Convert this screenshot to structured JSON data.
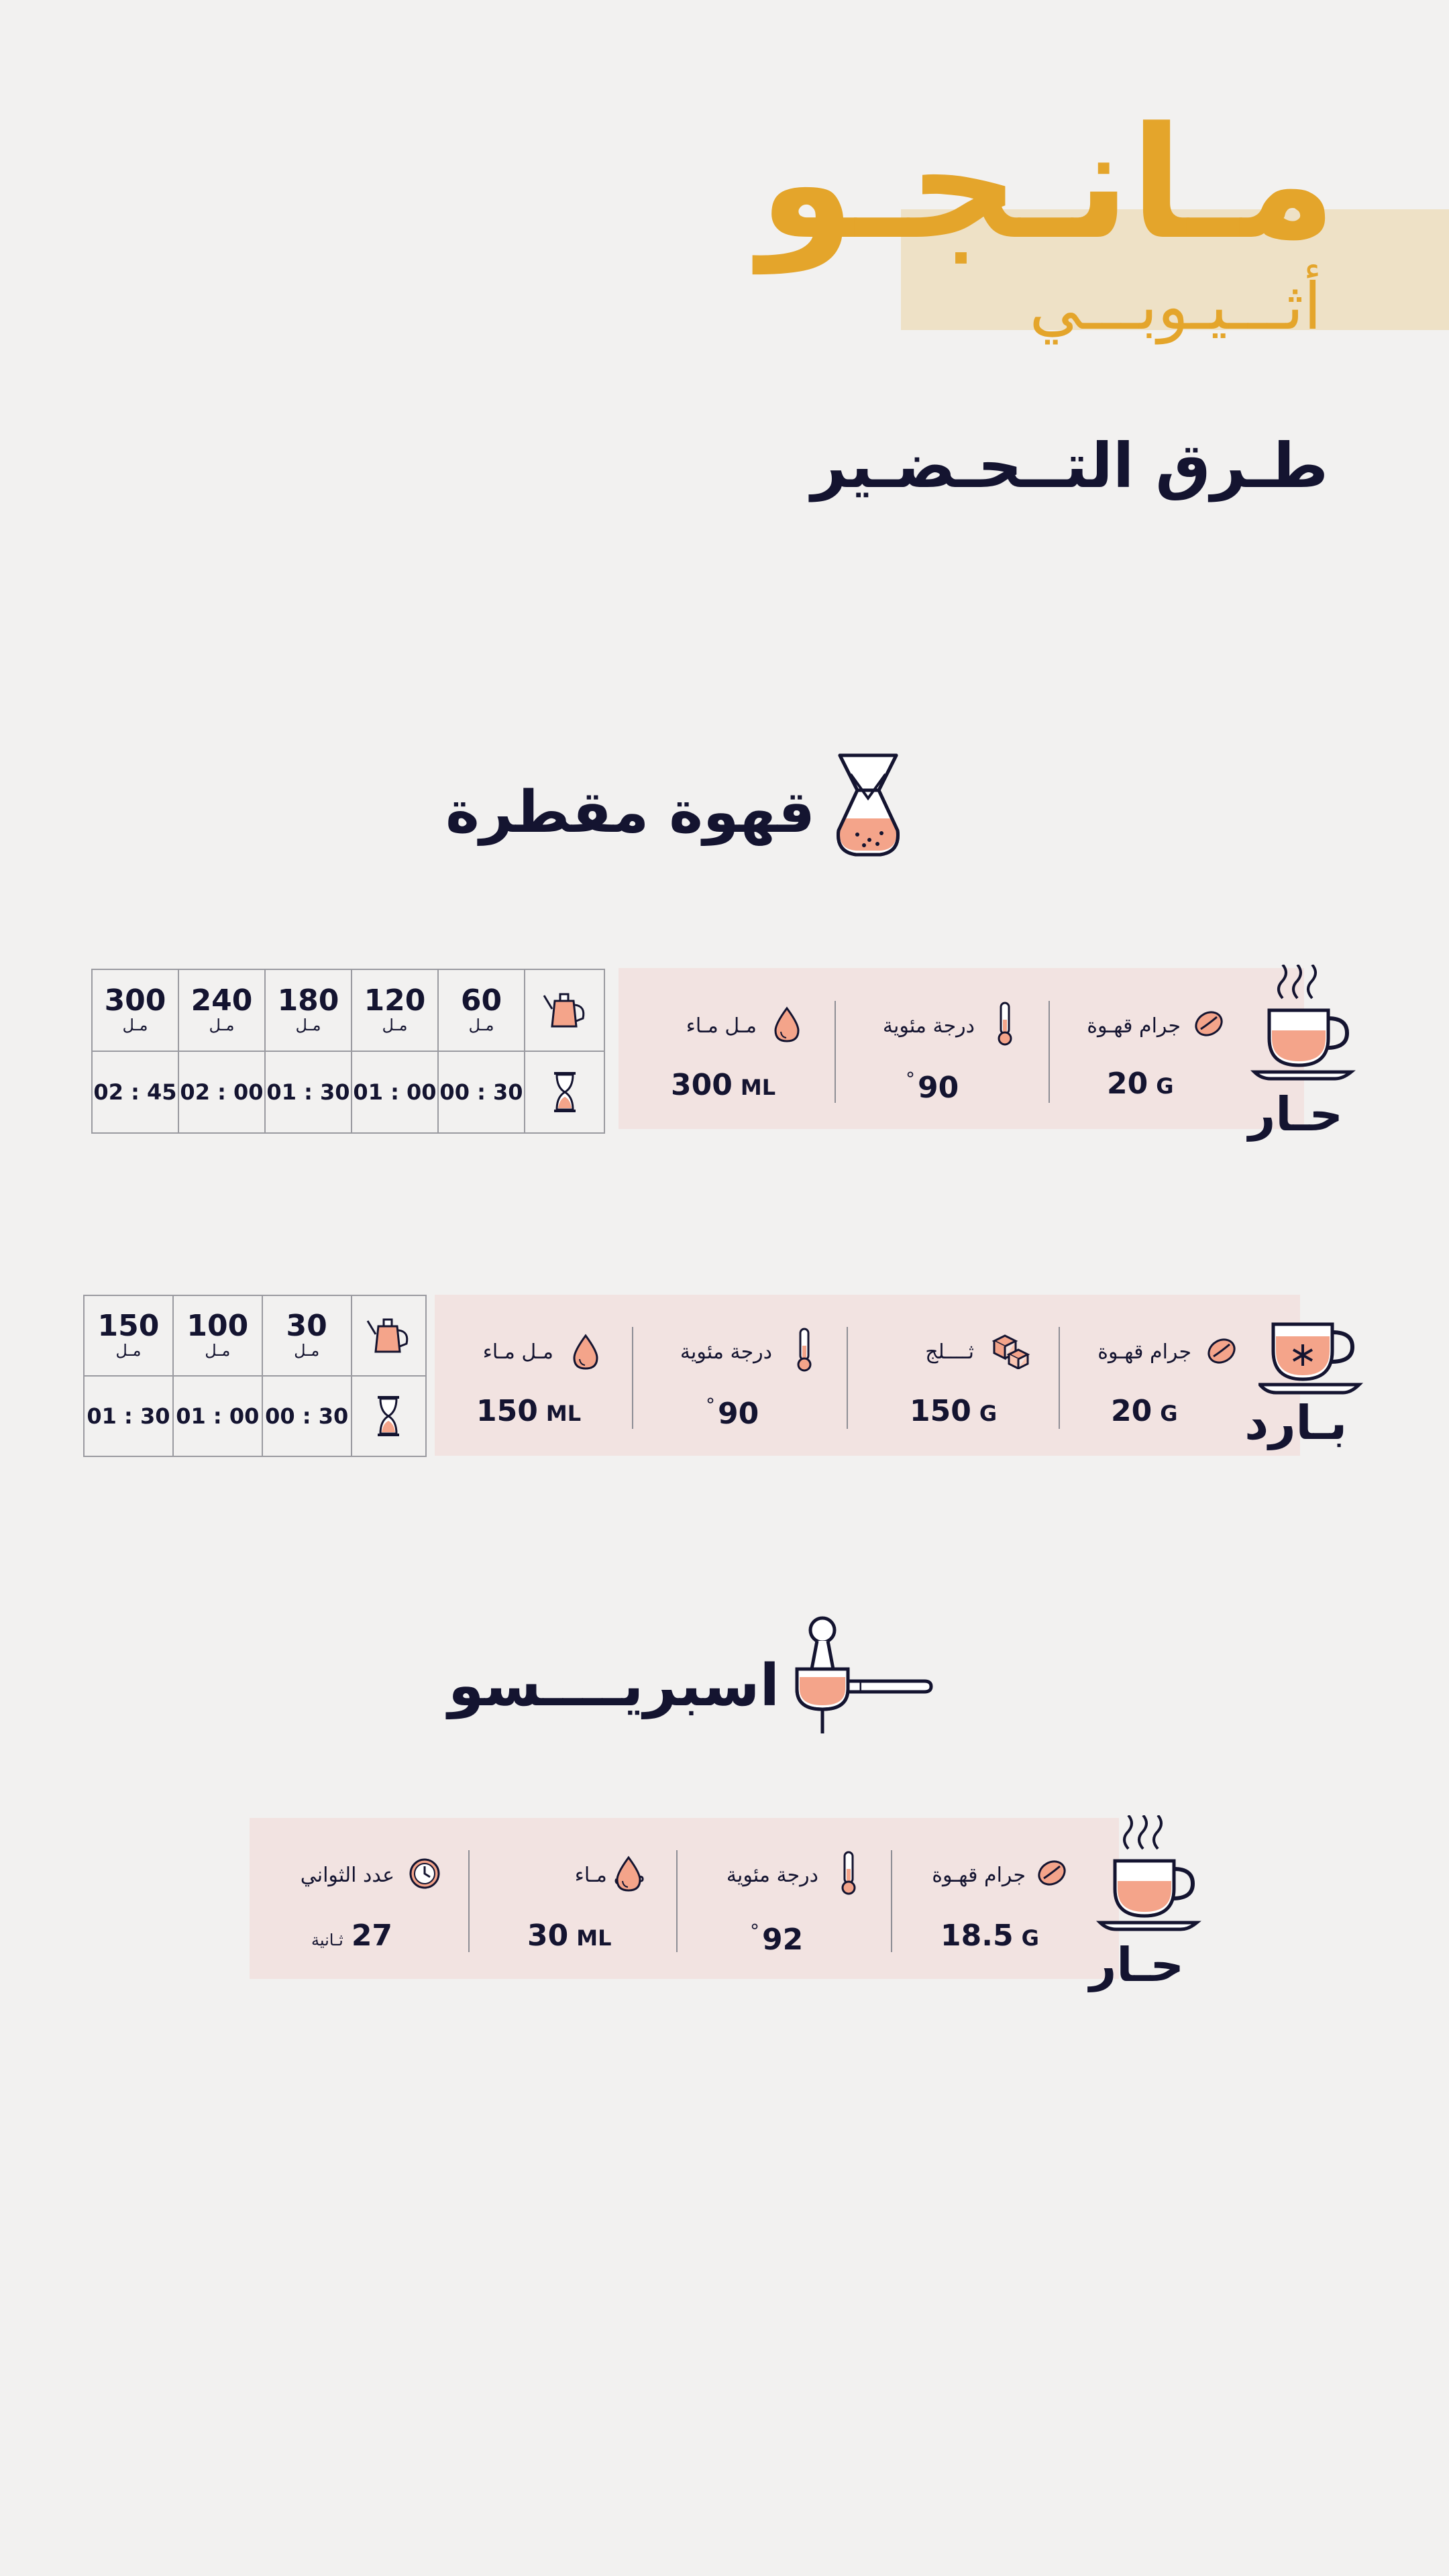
{
  "header": {
    "brand": "مـانـجـو",
    "origin": "أثـــيـوبـــي",
    "methods_title": "طـرق التــحـضـير"
  },
  "colors": {
    "accent": "#e4a52b",
    "band": "#f2e3e1",
    "header_band": "#eee1c6",
    "ink": "#141430",
    "coffee": "#f4a48a"
  },
  "drip": {
    "title": "قهوة مقطرة",
    "icon": "chemex-icon",
    "hot": {
      "label": "حـار",
      "icon": "hot-cup-icon",
      "stats": [
        {
          "label": "جرام قهـوة",
          "value": "20",
          "unit": "G",
          "icon": "coffee-bean-icon"
        },
        {
          "label": "درجة مئوية",
          "value": "90",
          "unit": "°",
          "icon": "thermometer-icon"
        },
        {
          "label": "مـل مـاء",
          "value": "300",
          "unit": "ML",
          "icon": "water-drop-icon"
        }
      ],
      "pours": [
        {
          "ml": "60",
          "time": "00 : 30"
        },
        {
          "ml": "120",
          "time": "01 : 00"
        },
        {
          "ml": "180",
          "time": "01 : 30"
        },
        {
          "ml": "240",
          "time": "02 : 00"
        },
        {
          "ml": "300",
          "time": "02 : 45"
        }
      ],
      "unit_label": "مـل"
    },
    "cold": {
      "label": "بـارد",
      "icon": "iced-cup-icon",
      "stats": [
        {
          "label": "جرام قهـوة",
          "value": "20",
          "unit": "G",
          "icon": "coffee-bean-icon"
        },
        {
          "label": "ثــــلج",
          "value": "150",
          "unit": "G",
          "icon": "ice-cubes-icon"
        },
        {
          "label": "درجة مئوية",
          "value": "90",
          "unit": "°",
          "icon": "thermometer-icon"
        },
        {
          "label": "مـل مـاء",
          "value": "150",
          "unit": "ML",
          "icon": "water-drop-icon"
        }
      ],
      "pours": [
        {
          "ml": "30",
          "time": "00 : 30"
        },
        {
          "ml": "100",
          "time": "01 : 00"
        },
        {
          "ml": "150",
          "time": "01 : 30"
        }
      ],
      "unit_label": "مـل"
    }
  },
  "espresso": {
    "title": "اسبريــــسو",
    "icon": "portafilter-icon",
    "hot": {
      "label": "حـار",
      "icon": "hot-cup-icon",
      "stats": [
        {
          "label": "جرام قهـوة",
          "value": "18.5",
          "unit": "G",
          "icon": "coffee-bean-icon"
        },
        {
          "label": "درجة مئوية",
          "value": "92",
          "unit": "°",
          "icon": "thermometer-icon"
        },
        {
          "label": "مـل مـاء",
          "value": "30",
          "unit": "ML",
          "icon": "water-drop-icon"
        },
        {
          "label": "عدد الثواني",
          "value": "27",
          "unit": "ثـانية",
          "icon": "clock-icon"
        }
      ]
    }
  }
}
